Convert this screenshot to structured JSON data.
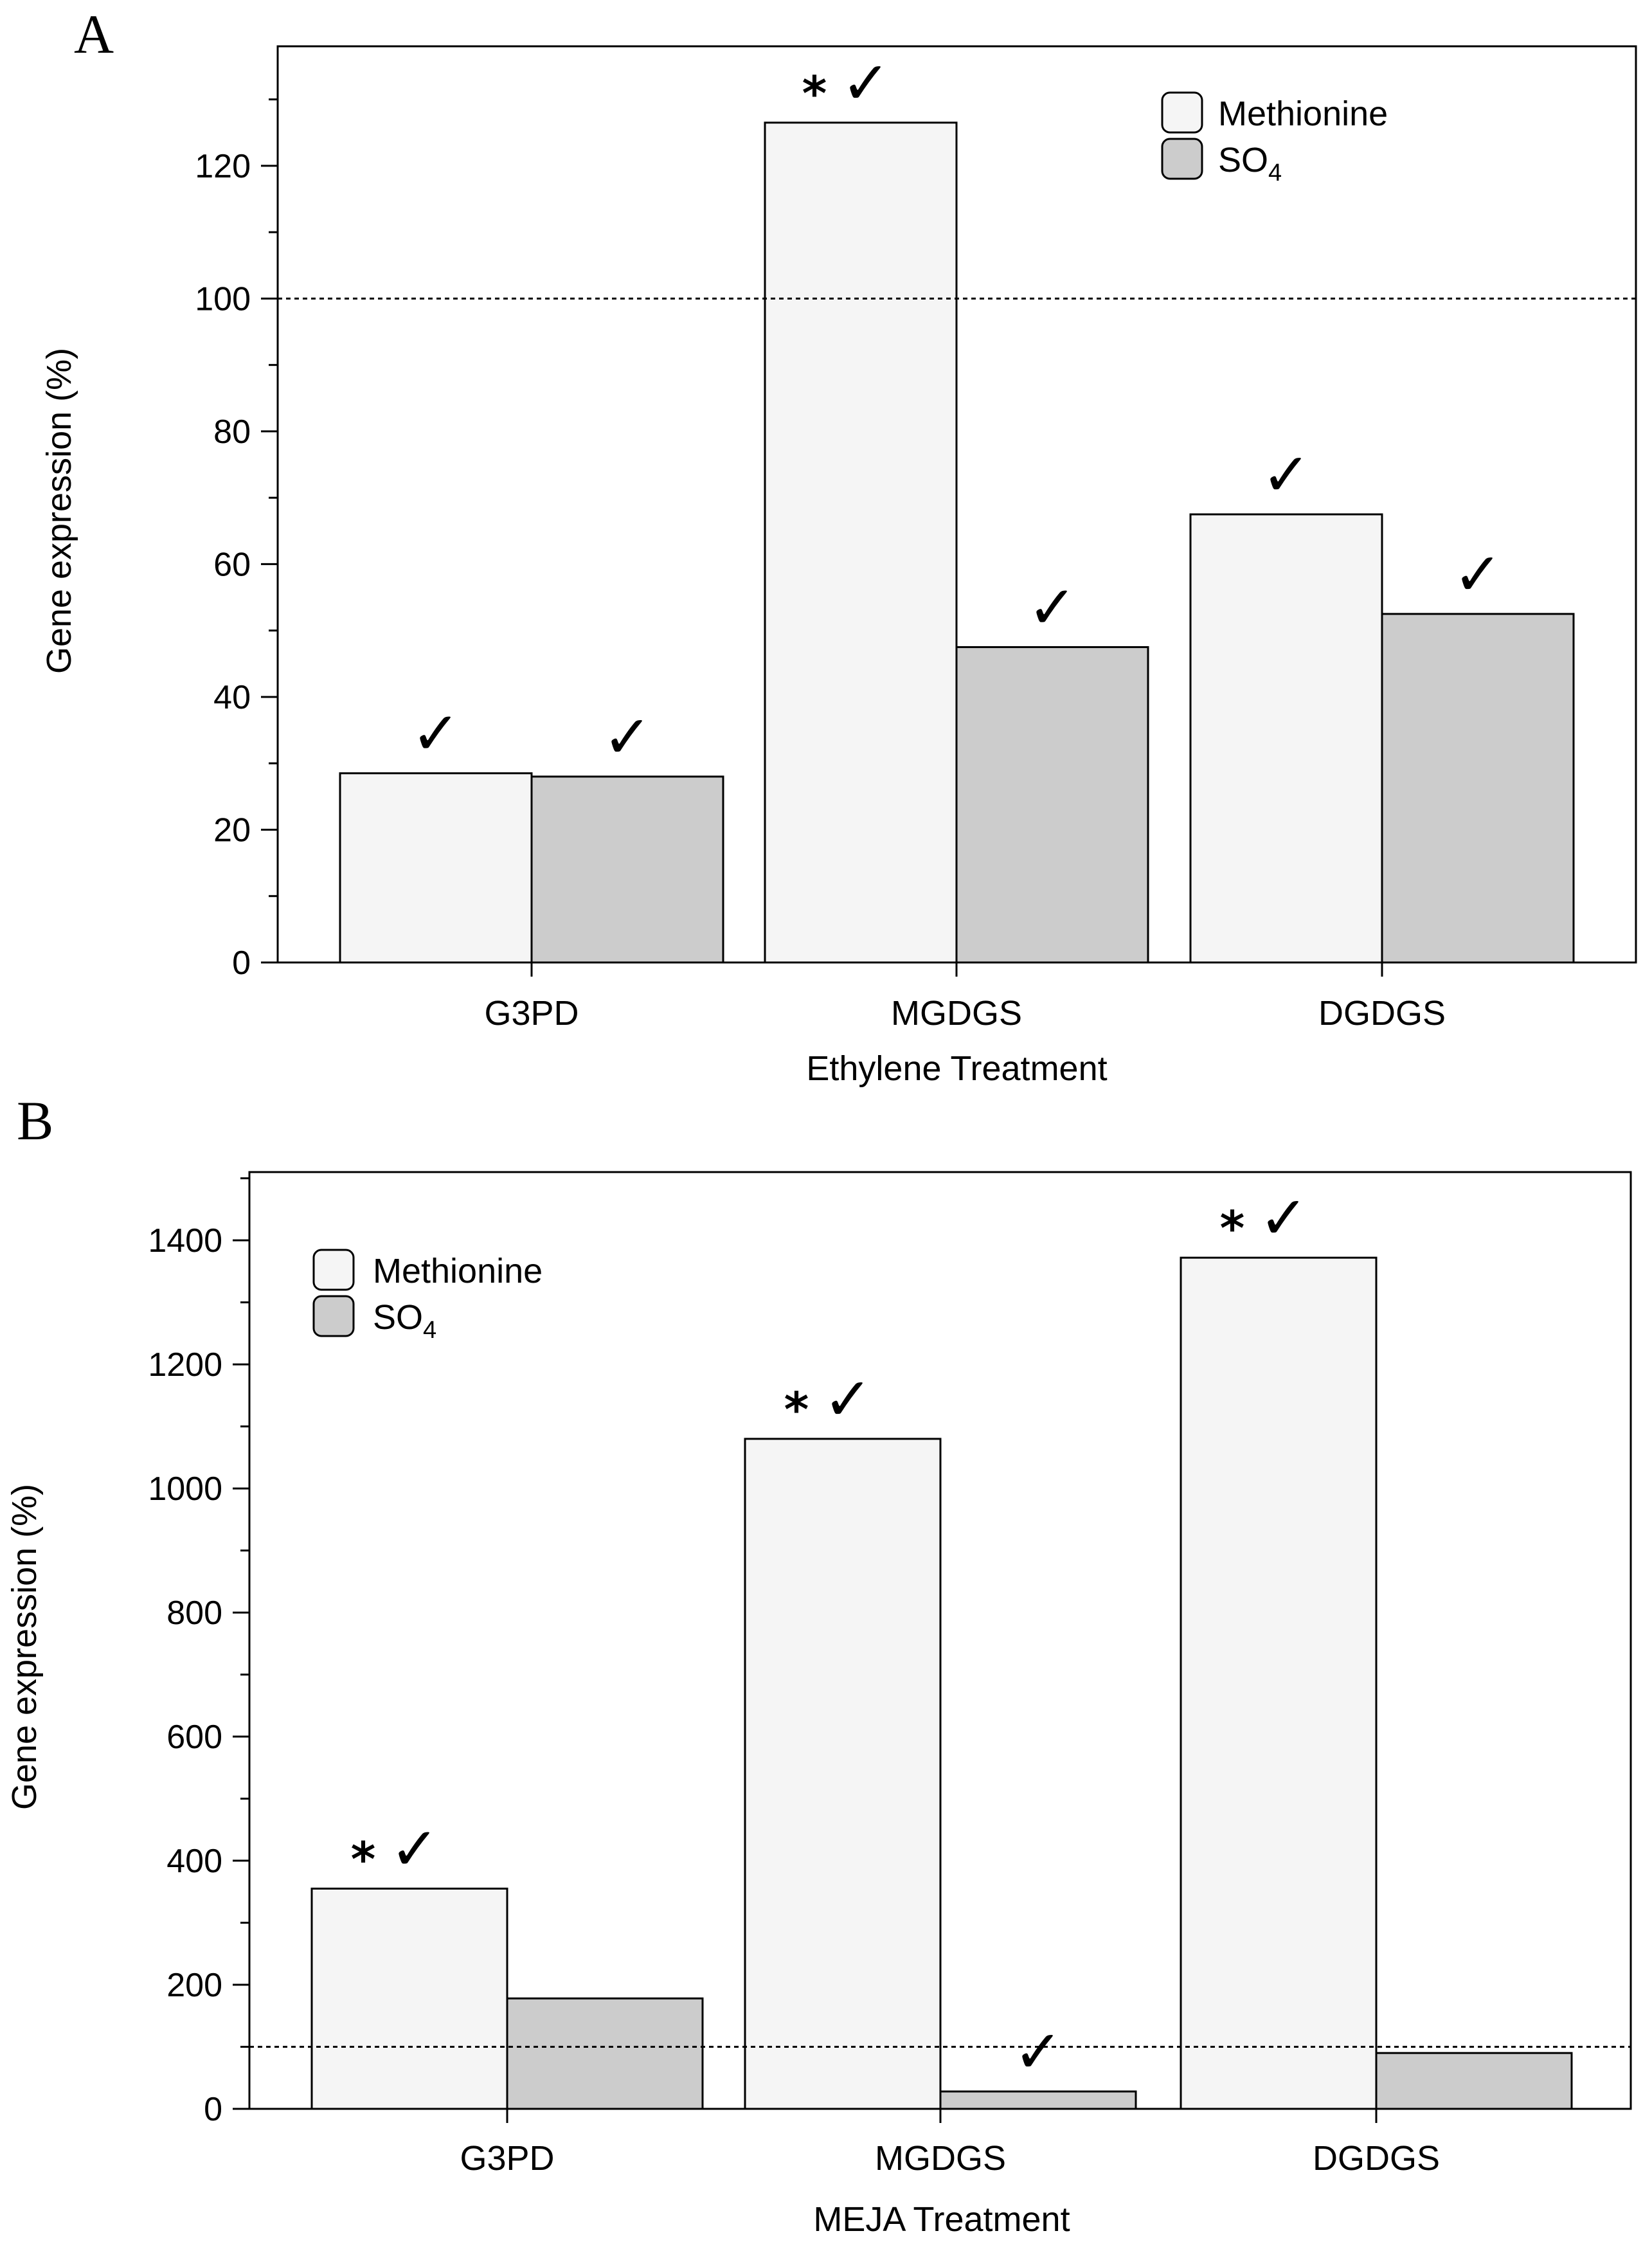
{
  "colors": {
    "methionine": "#f5f5f5",
    "so4": "#cccccc",
    "stroke": "#000000"
  },
  "chart_data": [
    {
      "panel": "A",
      "type": "bar",
      "categories": [
        "G3PD",
        "MGDGS",
        "DGDGS"
      ],
      "xlabel": "Ethylene Treatment",
      "ylabel": "Gene expression  (%)",
      "ylim": [
        0,
        138
      ],
      "yticks": [
        0,
        20,
        40,
        60,
        80,
        100,
        120
      ],
      "minor_tick_step": 10,
      "reference_line": 100,
      "legend": {
        "placement": "top-right",
        "entries": [
          "Methionine",
          "SO",
          "4"
        ]
      },
      "series": [
        {
          "name": "Methionine",
          "values": [
            28.5,
            126.5,
            67.5
          ],
          "stars": [
            false,
            true,
            false
          ],
          "checks": [
            true,
            true,
            true
          ]
        },
        {
          "name": "SO4",
          "values": [
            28,
            47.5,
            52.5
          ],
          "stars": [
            false,
            false,
            false
          ],
          "checks": [
            true,
            true,
            true
          ]
        }
      ],
      "star_symbol": "*",
      "check_symbol": "✓"
    },
    {
      "panel": "B",
      "type": "bar",
      "categories": [
        "G3PD",
        "MGDGS",
        "DGDGS"
      ],
      "xlabel": "MEJA Treatment",
      "ylabel": "Gene expression  (%)",
      "ylim": [
        0,
        1510
      ],
      "yticks": [
        0,
        200,
        400,
        600,
        800,
        1000,
        1200,
        1400
      ],
      "minor_tick_step": 100,
      "reference_line": 100,
      "legend": {
        "placement": "top-left",
        "entries": [
          "Methionine",
          "SO",
          "4"
        ]
      },
      "series": [
        {
          "name": "Methionine",
          "values": [
            355,
            1080,
            1372
          ],
          "stars": [
            true,
            true,
            true
          ],
          "checks": [
            true,
            true,
            true
          ]
        },
        {
          "name": "SO4",
          "values": [
            178,
            28,
            90
          ],
          "stars": [
            false,
            false,
            false
          ],
          "checks": [
            false,
            true,
            false
          ]
        }
      ],
      "star_symbol": "*",
      "check_symbol": "✓"
    }
  ]
}
